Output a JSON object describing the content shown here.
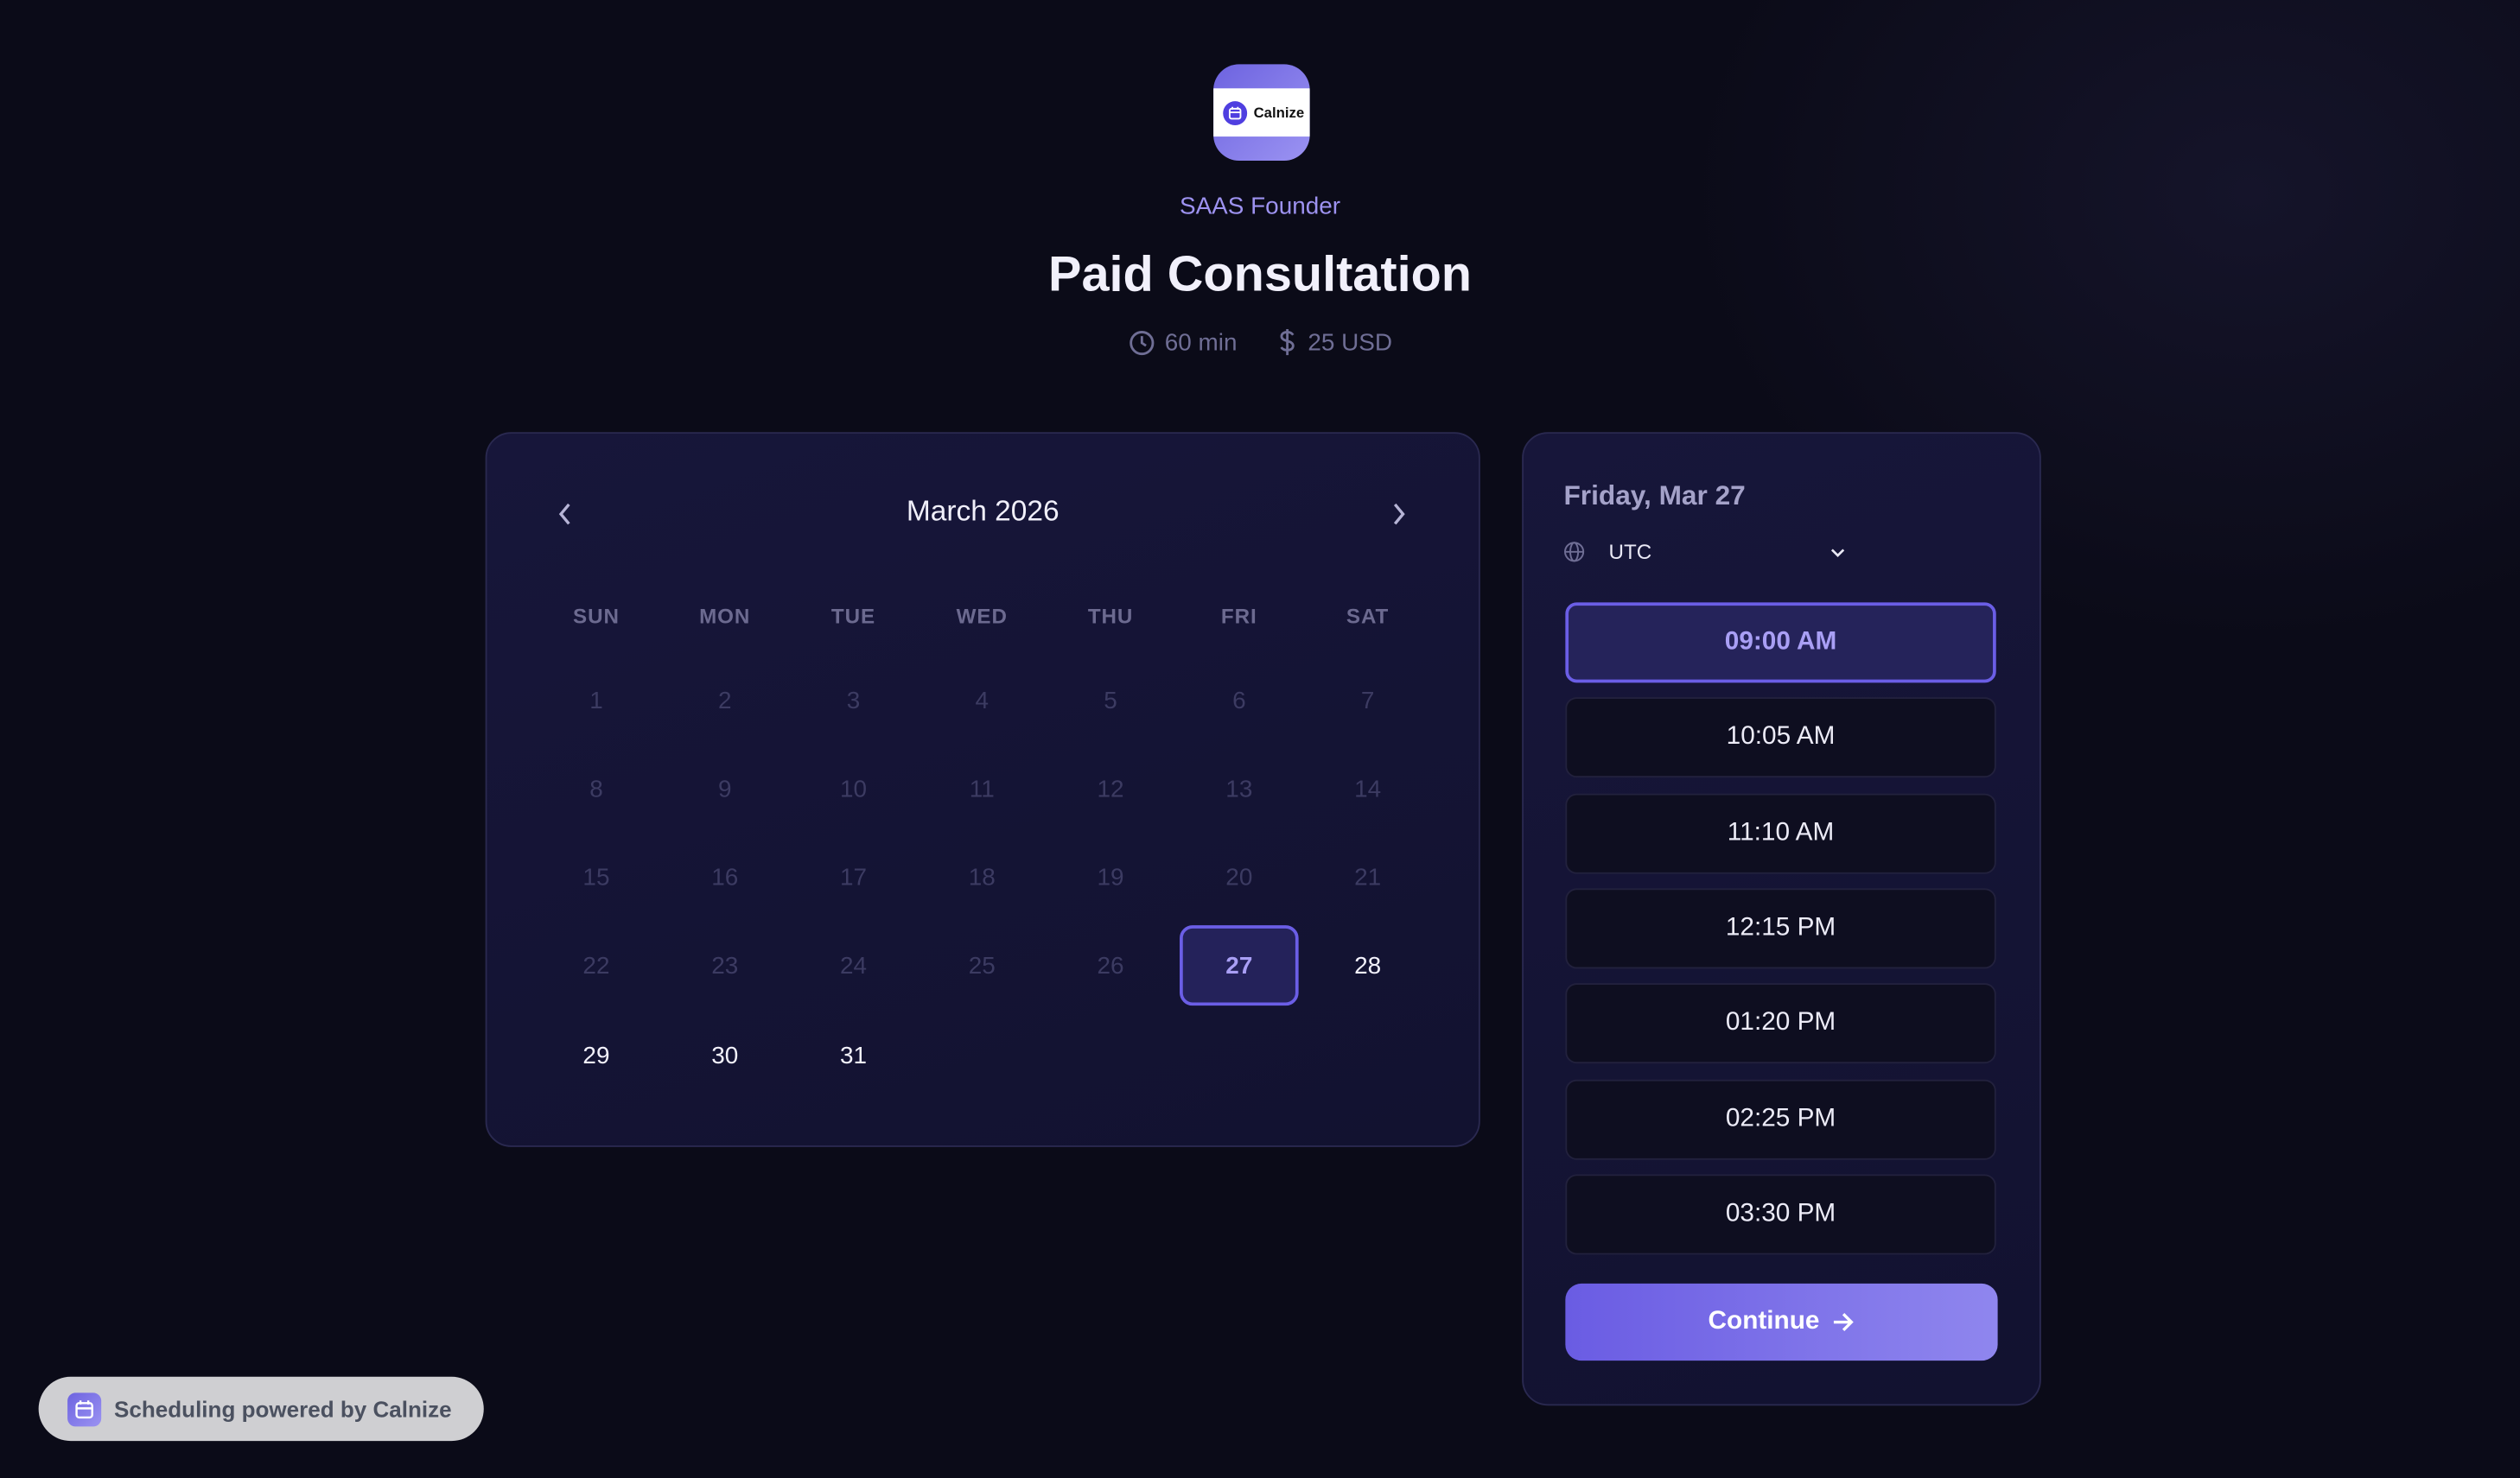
{
  "brand": {
    "logo_text": "Calnize",
    "accent": "#6b5ee6"
  },
  "event": {
    "owner": "SAAS Founder",
    "title": "Paid Consultation",
    "duration": "60 min",
    "price": "25 USD"
  },
  "calendar": {
    "month_label": "March 2026",
    "weekdays": [
      "SUN",
      "MON",
      "TUE",
      "WED",
      "THU",
      "FRI",
      "SAT"
    ],
    "first_weekday_index": 0,
    "days_in_month": 31,
    "available_days": [
      27,
      28,
      29,
      30,
      31
    ],
    "selected_day": 27
  },
  "slots_panel": {
    "date_label": "Friday, Mar 27",
    "timezone": "UTC",
    "slots": [
      "09:00 AM",
      "10:05 AM",
      "11:10 AM",
      "12:15 PM",
      "01:20 PM",
      "02:25 PM",
      "03:30 PM"
    ],
    "selected_slot": "09:00 AM",
    "continue_label": "Continue"
  },
  "footer": {
    "powered_by": "Scheduling powered by Calnize"
  }
}
